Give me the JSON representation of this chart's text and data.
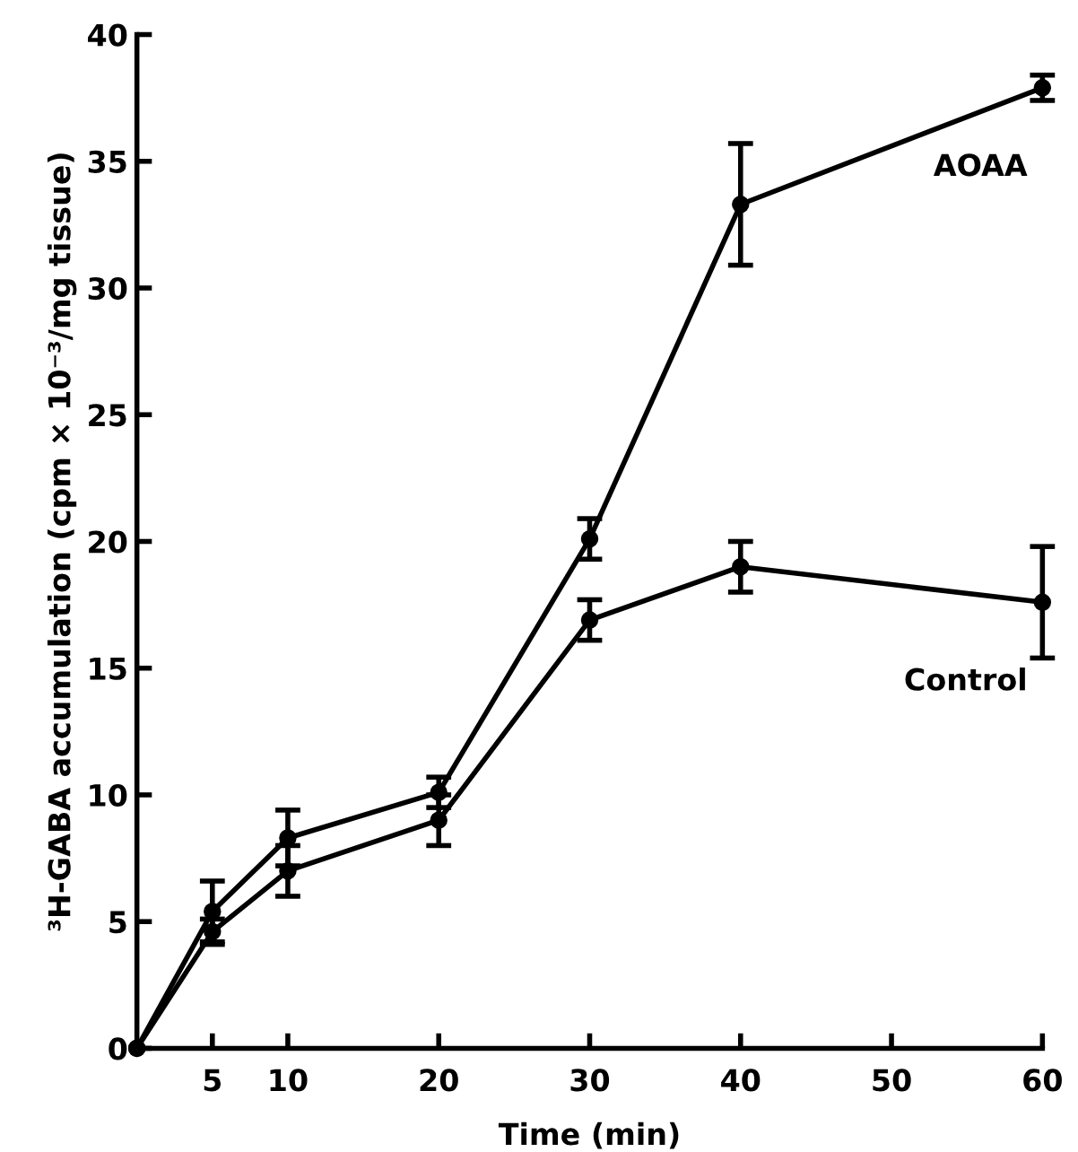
{
  "chart_data": {
    "type": "line",
    "xlabel": "Time (min)",
    "ylabel": "³H-GABA accumulation (cpm × 10⁻³/mg tissue)",
    "x": [
      0,
      5,
      10,
      20,
      30,
      40,
      60
    ],
    "series": [
      {
        "name": "AOAA",
        "color": "#000000",
        "values": [
          0,
          5.4,
          8.3,
          10.1,
          20.1,
          33.3,
          37.9
        ],
        "errors": [
          null,
          1.2,
          1.1,
          0.6,
          0.8,
          2.4,
          0.5
        ]
      },
      {
        "name": "Control",
        "color": "#000000",
        "values": [
          0,
          4.6,
          7.0,
          9.0,
          16.9,
          19.0,
          17.6
        ],
        "errors": [
          null,
          0.5,
          1.0,
          1.0,
          0.8,
          1.0,
          2.2
        ]
      }
    ],
    "xlim": [
      0,
      60
    ],
    "xticks": [
      5,
      10,
      20,
      30,
      40,
      50,
      60
    ],
    "ylim": [
      0,
      40
    ],
    "yticks": [
      0,
      5,
      10,
      15,
      20,
      25,
      30,
      35,
      40
    ],
    "marker": "circle",
    "line_style": "solid",
    "grid": false,
    "legend": false
  }
}
